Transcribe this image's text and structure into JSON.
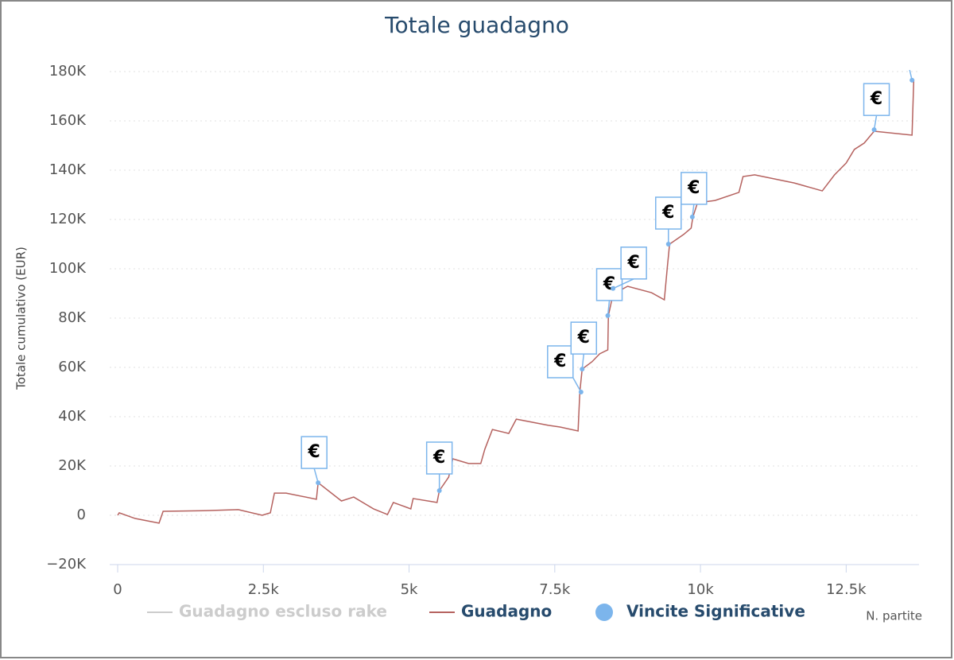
{
  "chart_data": {
    "type": "line",
    "title": "Totale guadagno",
    "ylabel": "Totale cumulativo (EUR)",
    "xlabel": "N. partite",
    "flag_text": "€",
    "xlim": [
      0,
      13750
    ],
    "ylim": [
      -20000,
      180000
    ],
    "xticks": [
      0,
      {
        "value": 2500,
        "label": "2.5k"
      },
      {
        "value": 5000,
        "label": "5k"
      },
      {
        "value": 7500,
        "label": "7.5k"
      },
      {
        "value": 10000,
        "label": "10k"
      },
      {
        "value": 12500,
        "label": "12.5k"
      }
    ],
    "yticks": [
      {
        "value": -20000,
        "label": "−20K"
      },
      0,
      {
        "value": 20000,
        "label": "20K"
      },
      {
        "value": 40000,
        "label": "40K"
      },
      {
        "value": 60000,
        "label": "60K"
      },
      {
        "value": 80000,
        "label": "80K"
      },
      {
        "value": 100000,
        "label": "100K"
      },
      {
        "value": 120000,
        "label": "120K"
      },
      {
        "value": 140000,
        "label": "140K"
      },
      {
        "value": 160000,
        "label": "160K"
      },
      {
        "value": 180000,
        "label": "180K"
      }
    ],
    "grid": true,
    "series": [
      {
        "name": "Guadagno escluso rake",
        "color": "#cccccc",
        "visible": false
      },
      {
        "name": "Guadagno",
        "color": "#b5625f",
        "type": "line",
        "x": [
          0,
          27,
          300,
          710,
          780,
          1530,
          2070,
          2480,
          2620,
          2690,
          2890,
          3410,
          3440,
          3840,
          4050,
          4390,
          4630,
          4730,
          5030,
          5070,
          5480,
          5520,
          5680,
          5750,
          6020,
          6230,
          6300,
          6430,
          6710,
          6840,
          7390,
          7590,
          7900,
          7930,
          7970,
          8140,
          8270,
          8410,
          8420,
          8500,
          8750,
          9160,
          9380,
          9430,
          9470,
          9710,
          9840,
          9870,
          9950,
          10250,
          10660,
          10730,
          10930,
          11610,
          12090,
          12300,
          12500,
          12640,
          12810,
          12980,
          13630,
          13660
        ],
        "values": [
          0,
          1000,
          -1300,
          -3200,
          1600,
          1900,
          2300,
          0,
          1000,
          9000,
          9000,
          6500,
          13200,
          5800,
          7400,
          2600,
          300,
          5200,
          2600,
          6800,
          5200,
          10000,
          15500,
          22900,
          21000,
          21000,
          26800,
          34800,
          33200,
          39000,
          36500,
          35800,
          34200,
          50000,
          59300,
          62300,
          65500,
          67100,
          81000,
          89700,
          92900,
          90300,
          87400,
          100300,
          110000,
          113900,
          116500,
          121000,
          126800,
          127700,
          131000,
          137400,
          138100,
          134800,
          131600,
          138100,
          142900,
          148400,
          151000,
          155800,
          154200,
          176800
        ]
      },
      {
        "name": "Vincite Significative",
        "color": "#7cb5ec",
        "type": "scatter",
        "x": [
          3440,
          5520,
          7950,
          7970,
          8410,
          8500,
          9450,
          9860,
          12980,
          13630
        ],
        "values": [
          13200,
          10000,
          50000,
          59300,
          81000,
          92000,
          110000,
          121000,
          156400,
          176500
        ]
      }
    ]
  }
}
